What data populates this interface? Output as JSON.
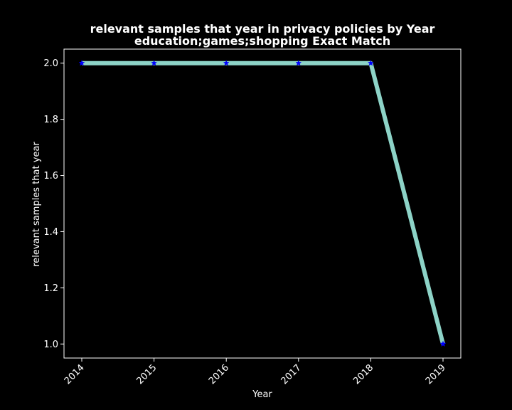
{
  "chart_data": {
    "type": "line",
    "title_line1": "relevant samples that year in privacy policies by Year",
    "title_line2": "education;games;shopping Exact Match",
    "xlabel": "Year",
    "ylabel": "relevant samples that year",
    "x": [
      "2014",
      "2015",
      "2016",
      "2017",
      "2018",
      "2019"
    ],
    "series": [
      {
        "values": [
          2.0,
          2.0,
          2.0,
          2.0,
          2.0,
          1.0
        ]
      }
    ],
    "yticks": [
      "1.0",
      "1.2",
      "1.4",
      "1.6",
      "1.8",
      "2.0"
    ],
    "ylim": [
      0.95,
      2.05
    ],
    "grid": false,
    "line_color": "#8dd3c7",
    "marker_color": "#0000ff",
    "marker": "star",
    "background": "#000000",
    "foreground": "#ffffff"
  }
}
